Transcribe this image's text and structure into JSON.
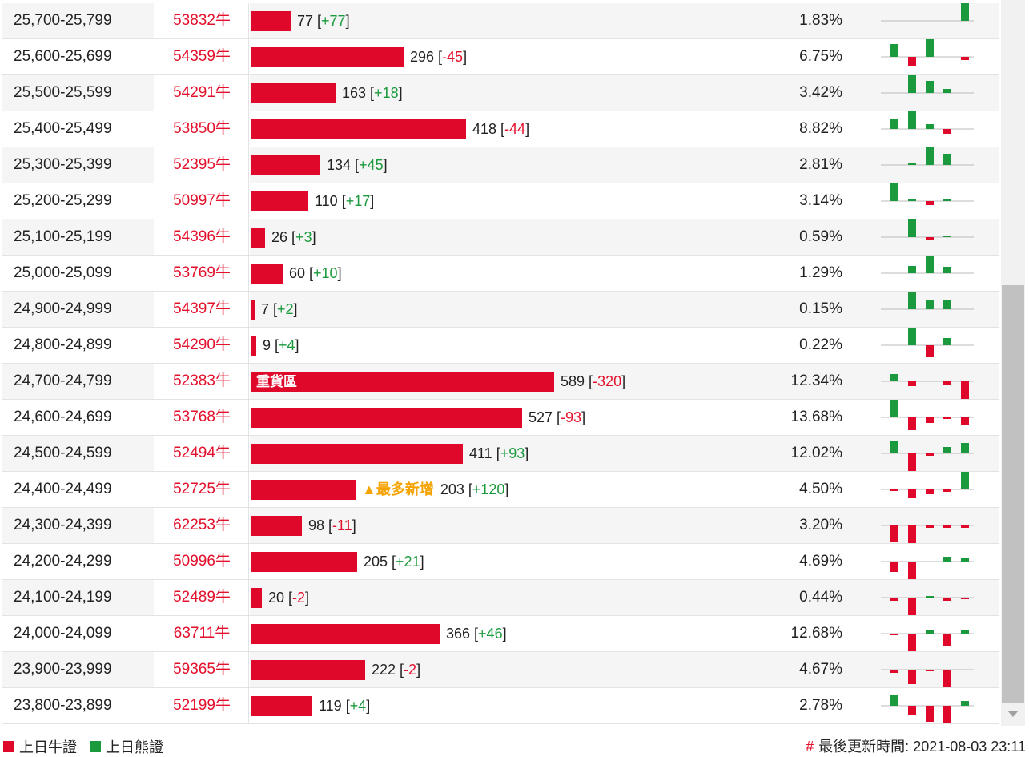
{
  "colors": {
    "bull": "#e0082a",
    "bear": "#1a9a3c",
    "accent_orange": "#f5a300"
  },
  "rows": [
    {
      "range": "25,700-25,799",
      "code": "53832牛",
      "count": 77,
      "change": "+77",
      "percent": "1.83%",
      "spark": [
        0,
        0,
        0,
        0,
        22
      ]
    },
    {
      "range": "25,600-25,699",
      "code": "54359牛",
      "count": 296,
      "change": "-45",
      "percent": "6.75%",
      "spark": [
        16,
        -11,
        22,
        0,
        -4
      ]
    },
    {
      "range": "25,500-25,599",
      "code": "54291牛",
      "count": 163,
      "change": "+18",
      "percent": "3.42%",
      "spark": [
        0,
        22,
        15,
        5,
        0
      ]
    },
    {
      "range": "25,400-25,499",
      "code": "53850牛",
      "count": 418,
      "change": "-44",
      "percent": "8.82%",
      "spark": [
        13,
        22,
        6,
        -6,
        0
      ]
    },
    {
      "range": "25,300-25,399",
      "code": "52395牛",
      "count": 134,
      "change": "+45",
      "percent": "2.81%",
      "spark": [
        0,
        3,
        22,
        14,
        0
      ]
    },
    {
      "range": "25,200-25,299",
      "code": "50997牛",
      "count": 110,
      "change": "+17",
      "percent": "3.14%",
      "spark": [
        22,
        2,
        -5,
        2,
        0
      ]
    },
    {
      "range": "25,100-25,199",
      "code": "54396牛",
      "count": 26,
      "change": "+3",
      "percent": "0.59%",
      "spark": [
        0,
        22,
        -4,
        2,
        0
      ]
    },
    {
      "range": "25,000-25,099",
      "code": "53769牛",
      "count": 60,
      "change": "+10",
      "percent": "1.29%",
      "spark": [
        0,
        9,
        22,
        8,
        0
      ]
    },
    {
      "range": "24,900-24,999",
      "code": "54397牛",
      "count": 7,
      "change": "+2",
      "percent": "0.15%",
      "spark": [
        0,
        22,
        11,
        11,
        0
      ]
    },
    {
      "range": "24,800-24,899",
      "code": "54290牛",
      "count": 9,
      "change": "+4",
      "percent": "0.22%",
      "spark": [
        0,
        22,
        -15,
        9,
        0
      ]
    },
    {
      "range": "24,700-24,799",
      "code": "52383牛",
      "count": 589,
      "change": "-320",
      "percent": "12.34%",
      "spark": [
        9,
        -6,
        1,
        -4,
        -22
      ],
      "tag": "重貨區"
    },
    {
      "range": "24,600-24,699",
      "code": "53768牛",
      "count": 527,
      "change": "-93",
      "percent": "13.68%",
      "spark": [
        22,
        -16,
        -7,
        -2,
        -9
      ]
    },
    {
      "range": "24,500-24,599",
      "code": "52494牛",
      "count": 411,
      "change": "+93",
      "percent": "12.02%",
      "spark": [
        15,
        -22,
        -3,
        8,
        13
      ]
    },
    {
      "range": "24,400-24,499",
      "code": "52725牛",
      "count": 203,
      "change": "+120",
      "percent": "4.50%",
      "spark": [
        -2,
        -11,
        -6,
        -3,
        22
      ],
      "most": "▲最多新增"
    },
    {
      "range": "24,300-24,399",
      "code": "62253牛",
      "count": 98,
      "change": "-11",
      "percent": "3.20%",
      "spark": [
        -20,
        -22,
        -3,
        -3,
        -3
      ]
    },
    {
      "range": "24,200-24,299",
      "code": "50996牛",
      "count": 205,
      "change": "+21",
      "percent": "4.69%",
      "spark": [
        -13,
        -22,
        0,
        6,
        5
      ]
    },
    {
      "range": "24,100-24,199",
      "code": "52489牛",
      "count": 20,
      "change": "-2",
      "percent": "0.44%",
      "spark": [
        -4,
        -22,
        2,
        -4,
        -2
      ]
    },
    {
      "range": "24,000-24,099",
      "code": "63711牛",
      "count": 366,
      "change": "+46",
      "percent": "12.68%",
      "spark": [
        -2,
        -22,
        5,
        -15,
        4
      ]
    },
    {
      "range": "23,900-23,999",
      "code": "59365牛",
      "count": 222,
      "change": "-2",
      "percent": "4.67%",
      "spark": [
        -4,
        -18,
        -2,
        -22,
        -1
      ]
    },
    {
      "range": "23,800-23,899",
      "code": "52199牛",
      "count": 119,
      "change": "+4",
      "percent": "2.78%",
      "spark": [
        13,
        -11,
        -20,
        -22,
        6
      ]
    }
  ],
  "bar_max_count": 589,
  "legend": {
    "bull_label": "上日牛證",
    "bear_label": "上日熊證"
  },
  "footer": {
    "hash": "#",
    "updated_label": "最後更新時間:",
    "updated_value": "2021-08-03 23:11"
  }
}
